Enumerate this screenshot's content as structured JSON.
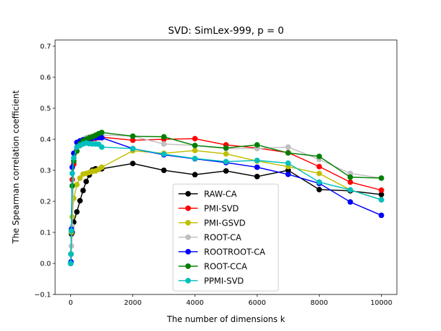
{
  "chart_data": {
    "type": "line",
    "title": "SVD: SimLex-999, p = 0",
    "xlabel": "The number of dimensions k",
    "ylabel": "The Spearman correlation coefficient",
    "xlim": [
      -500,
      10500
    ],
    "ylim": [
      -0.1,
      0.72
    ],
    "xticks": [
      0,
      2000,
      4000,
      6000,
      8000,
      10000
    ],
    "xtick_labels": [
      "0",
      "2000",
      "4000",
      "6000",
      "8000",
      "10000"
    ],
    "yticks": [
      -0.1,
      0.0,
      0.1,
      0.2,
      0.3,
      0.4,
      0.5,
      0.6,
      0.7
    ],
    "ytick_labels": [
      "−0.1",
      "0.0",
      "0.1",
      "0.2",
      "0.3",
      "0.4",
      "0.5",
      "0.6",
      "0.7"
    ],
    "grid": false,
    "legend_position": "lower-center",
    "series": [
      {
        "name": "RAW-CA",
        "color": "#000000",
        "x": [
          1,
          10,
          25,
          50,
          100,
          200,
          300,
          400,
          500,
          600,
          700,
          800,
          900,
          1000,
          2000,
          3000,
          4000,
          5000,
          6000,
          7000,
          8000,
          9000,
          10000
        ],
        "y": [
          0.0,
          0.03,
          0.095,
          0.1,
          0.133,
          0.166,
          0.202,
          0.235,
          0.264,
          0.285,
          0.301,
          0.305,
          0.303,
          0.305,
          0.322,
          0.3,
          0.286,
          0.298,
          0.28,
          0.3,
          0.238,
          0.234,
          0.222
        ]
      },
      {
        "name": "PMI-SVD",
        "color": "#ff0000",
        "x": [
          1,
          10,
          25,
          50,
          100,
          200,
          300,
          400,
          500,
          600,
          700,
          800,
          900,
          1000,
          2000,
          3000,
          4000,
          5000,
          6000,
          7000,
          8000,
          9000,
          10000
        ],
        "y": [
          0.0,
          0.03,
          0.1,
          0.27,
          0.32,
          0.362,
          0.38,
          0.39,
          0.397,
          0.4,
          0.402,
          0.403,
          0.405,
          0.407,
          0.397,
          0.4,
          0.402,
          0.382,
          0.372,
          0.357,
          0.312,
          0.262,
          0.236
        ]
      },
      {
        "name": "PMI-GSVD",
        "color": "#bfbf00",
        "x": [
          1,
          10,
          25,
          50,
          100,
          200,
          300,
          400,
          500,
          600,
          700,
          800,
          900,
          1000,
          2000,
          3000,
          4000,
          5000,
          6000,
          7000,
          8000,
          9000,
          10000
        ],
        "y": [
          0.0,
          0.03,
          0.1,
          0.15,
          0.21,
          0.254,
          0.275,
          0.288,
          0.29,
          0.293,
          0.297,
          0.298,
          0.303,
          0.31,
          0.363,
          0.355,
          0.364,
          0.353,
          0.33,
          0.312,
          0.29,
          0.237,
          0.205
        ]
      },
      {
        "name": "ROOT-CA",
        "color": "#bfbfbf",
        "x": [
          1,
          10,
          25,
          50,
          100,
          200,
          300,
          400,
          500,
          600,
          700,
          800,
          900,
          1000,
          2000,
          3000,
          4000,
          5000,
          6000,
          7000,
          8000,
          9000,
          10000
        ],
        "y": [
          0.0,
          0.03,
          0.056,
          0.12,
          0.34,
          0.375,
          0.393,
          0.4,
          0.405,
          0.408,
          0.41,
          0.412,
          0.413,
          0.414,
          0.41,
          0.385,
          0.38,
          0.37,
          0.37,
          0.375,
          0.335,
          0.29,
          0.275
        ]
      },
      {
        "name": "ROOTROOT-CA",
        "color": "#0000ff",
        "x": [
          1,
          10,
          25,
          50,
          100,
          200,
          300,
          400,
          500,
          600,
          700,
          800,
          900,
          1000,
          2000,
          3000,
          4000,
          5000,
          6000,
          7000,
          8000,
          9000,
          10000
        ],
        "y": [
          0.0,
          0.005,
          0.11,
          0.31,
          0.355,
          0.39,
          0.395,
          0.398,
          0.4,
          0.402,
          0.404,
          0.405,
          0.406,
          0.405,
          0.37,
          0.35,
          0.337,
          0.325,
          0.31,
          0.287,
          0.258,
          0.198,
          0.155
        ]
      },
      {
        "name": "ROOT-CCA",
        "color": "#008000",
        "x": [
          1,
          10,
          25,
          50,
          100,
          200,
          300,
          400,
          500,
          600,
          700,
          800,
          900,
          1000,
          2000,
          3000,
          4000,
          5000,
          6000,
          7000,
          8000,
          9000,
          10000
        ],
        "y": [
          0.0,
          0.03,
          0.105,
          0.25,
          0.33,
          0.362,
          0.385,
          0.395,
          0.4,
          0.405,
          0.408,
          0.413,
          0.418,
          0.422,
          0.41,
          0.408,
          0.38,
          0.372,
          0.382,
          0.356,
          0.345,
          0.278,
          0.275
        ]
      },
      {
        "name": "PPMI-SVD",
        "color": "#00bfbf",
        "x": [
          1,
          10,
          25,
          50,
          100,
          200,
          300,
          400,
          500,
          600,
          700,
          800,
          900,
          1000,
          2000,
          3000,
          4000,
          5000,
          6000,
          7000,
          8000,
          9000,
          10000
        ],
        "y": [
          0.0,
          0.03,
          0.105,
          0.29,
          0.34,
          0.375,
          0.38,
          0.385,
          0.388,
          0.386,
          0.385,
          0.385,
          0.384,
          0.375,
          0.37,
          0.352,
          0.338,
          0.328,
          0.332,
          0.323,
          0.262,
          0.237,
          0.205
        ]
      }
    ]
  }
}
